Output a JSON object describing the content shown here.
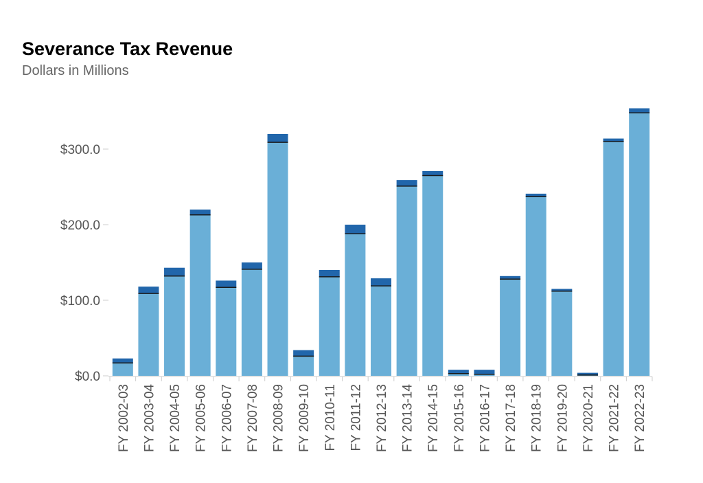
{
  "chart_data": {
    "type": "bar",
    "title": "Severance Tax Revenue",
    "subtitle": "Dollars in Millions",
    "xlabel": "",
    "ylabel": "",
    "ylim": [
      0,
      350
    ],
    "y_ticks": [
      0,
      100,
      200,
      300
    ],
    "y_tick_labels": [
      "$0.0",
      "$100.0",
      "$200.0",
      "$300.0"
    ],
    "grid": false,
    "categories": [
      "FY 2002-03",
      "FY 2003-04",
      "FY 2004-05",
      "FY 2005-06",
      "FY 2006-07",
      "FY 2007-08",
      "FY 2008-09",
      "FY 2009-10",
      "FY 2010-11",
      "FY 2011-12",
      "FY 2012-13",
      "FY 2013-14",
      "FY 2014-15",
      "FY 2015-16",
      "FY 2016-17",
      "FY 2017-18",
      "FY 2018-19",
      "FY 2019-20",
      "FY 2020-21",
      "FY 2021-22",
      "FY 2022-23"
    ],
    "series": [
      {
        "values": [
          17,
          109,
          132,
          213,
          117,
          141,
          309,
          26,
          131,
          188,
          119,
          251,
          265,
          3,
          2,
          128,
          237,
          112,
          1,
          310,
          348
        ]
      },
      {
        "values": [
          6,
          9,
          11,
          7,
          9,
          9,
          11,
          8,
          9,
          12,
          10,
          8,
          6,
          5,
          6,
          4,
          4,
          3,
          3,
          4,
          6
        ]
      }
    ],
    "colors": {
      "base": "#6aafd7",
      "top": "#2166ab",
      "divider": "#1a1a1a",
      "axis": "#cccccc"
    }
  }
}
